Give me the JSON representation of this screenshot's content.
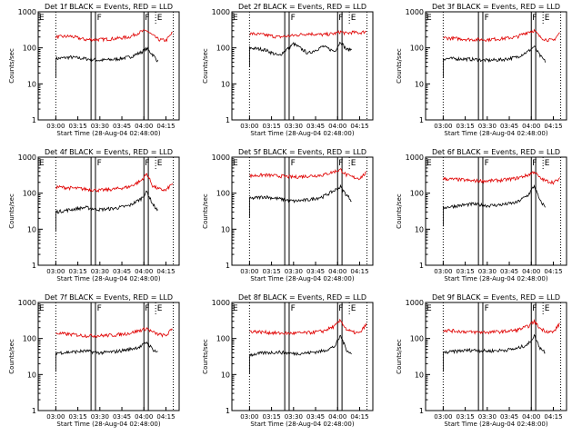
{
  "figure": {
    "xlabel": "Start Time (28-Aug-04 02:48:00)",
    "ylabel": "Counts/sec",
    "xtick_labels": [
      "03:00",
      "03:15",
      "03:30",
      "03:45",
      "04:00",
      "04:15"
    ],
    "ytick_labels": [
      "1",
      "10",
      "100",
      "1000"
    ],
    "interval_labels": [
      "E",
      "F",
      "F",
      "E"
    ],
    "colors": {
      "events": "#000000",
      "lld": "#e00000"
    }
  },
  "chart_data": [
    {
      "type": "line",
      "title": "Det 1f BLACK = Events, RED = LLD",
      "xlabel": "Start Time (28-Aug-04 02:48:00)",
      "ylabel": "Counts/sec",
      "y_scale": "log",
      "ylim": [
        1,
        1000
      ],
      "xlim": [
        "02:48",
        "04:24"
      ],
      "x": [
        "03:00",
        "03:10",
        "03:20",
        "03:30",
        "03:40",
        "03:50",
        "03:58",
        "04:02",
        "04:06",
        "04:10",
        "04:15",
        "04:20"
      ],
      "series": [
        {
          "name": "Events",
          "color": "#000000",
          "values": [
            50,
            55,
            50,
            45,
            48,
            55,
            75,
            95,
            65,
            40,
            null,
            null
          ]
        },
        {
          "name": "LLD",
          "color": "#e00000",
          "values": [
            200,
            210,
            170,
            170,
            180,
            200,
            280,
            300,
            220,
            170,
            160,
            280
          ]
        }
      ]
    },
    {
      "type": "line",
      "title": "Det 2f BLACK = Events, RED = LLD",
      "xlabel": "Start Time (28-Aug-04 02:48:00)",
      "ylabel": "Counts/sec",
      "y_scale": "log",
      "ylim": [
        1,
        1000
      ],
      "xlim": [
        "02:48",
        "04:24"
      ],
      "x": [
        "03:00",
        "03:10",
        "03:20",
        "03:30",
        "03:40",
        "03:50",
        "03:58",
        "04:02",
        "04:06",
        "04:10",
        "04:15",
        "04:20"
      ],
      "series": [
        {
          "name": "Events",
          "color": "#000000",
          "values": [
            100,
            90,
            60,
            130,
            70,
            110,
            80,
            150,
            90,
            90,
            null,
            null
          ]
        },
        {
          "name": "LLD",
          "color": "#e00000",
          "values": [
            250,
            230,
            200,
            220,
            250,
            230,
            250,
            280,
            250,
            270,
            260,
            290
          ]
        }
      ]
    },
    {
      "type": "line",
      "title": "Det 3f BLACK = Events, RED = LLD",
      "xlabel": "Start Time (28-Aug-04 02:48:00)",
      "ylabel": "Counts/sec",
      "y_scale": "log",
      "ylim": [
        1,
        1000
      ],
      "xlim": [
        "02:48",
        "04:24"
      ],
      "x": [
        "03:00",
        "03:10",
        "03:20",
        "03:30",
        "03:40",
        "03:50",
        "03:58",
        "04:02",
        "04:06",
        "04:10",
        "04:15",
        "04:20"
      ],
      "series": [
        {
          "name": "Events",
          "color": "#000000",
          "values": [
            50,
            50,
            48,
            45,
            47,
            55,
            80,
            110,
            60,
            40,
            null,
            null
          ]
        },
        {
          "name": "LLD",
          "color": "#e00000",
          "values": [
            190,
            180,
            170,
            170,
            180,
            200,
            280,
            300,
            200,
            170,
            160,
            280
          ]
        }
      ]
    },
    {
      "type": "line",
      "title": "Det 4f BLACK = Events, RED = LLD",
      "xlabel": "Start Time (28-Aug-04 02:48:00)",
      "ylabel": "Counts/sec",
      "y_scale": "log",
      "ylim": [
        1,
        1000
      ],
      "xlim": [
        "02:48",
        "04:24"
      ],
      "x": [
        "03:00",
        "03:10",
        "03:20",
        "03:30",
        "03:40",
        "03:50",
        "03:58",
        "04:02",
        "04:06",
        "04:10",
        "04:15",
        "04:20"
      ],
      "series": [
        {
          "name": "Events",
          "color": "#000000",
          "values": [
            30,
            35,
            40,
            35,
            38,
            45,
            70,
            110,
            50,
            30,
            null,
            null
          ]
        },
        {
          "name": "LLD",
          "color": "#e00000",
          "values": [
            150,
            140,
            130,
            120,
            130,
            150,
            220,
            350,
            160,
            130,
            120,
            200
          ]
        }
      ]
    },
    {
      "type": "line",
      "title": "Det 5f BLACK = Events, RED = LLD",
      "xlabel": "Start Time (28-Aug-04 02:48:00)",
      "ylabel": "Counts/sec",
      "y_scale": "log",
      "ylim": [
        1,
        1000
      ],
      "xlim": [
        "02:48",
        "04:24"
      ],
      "x": [
        "03:00",
        "03:10",
        "03:20",
        "03:30",
        "03:40",
        "03:50",
        "03:58",
        "04:02",
        "04:06",
        "04:10",
        "04:15",
        "04:20"
      ],
      "series": [
        {
          "name": "Events",
          "color": "#000000",
          "values": [
            70,
            80,
            70,
            60,
            65,
            80,
            120,
            150,
            90,
            60,
            null,
            null
          ]
        },
        {
          "name": "LLD",
          "color": "#e00000",
          "values": [
            300,
            320,
            300,
            280,
            300,
            320,
            400,
            450,
            320,
            280,
            260,
            380
          ]
        }
      ]
    },
    {
      "type": "line",
      "title": "Det 6f BLACK = Events, RED = LLD",
      "xlabel": "Start Time (28-Aug-04 02:48:00)",
      "ylabel": "Counts/sec",
      "y_scale": "log",
      "ylim": [
        1,
        1000
      ],
      "xlim": [
        "02:48",
        "04:24"
      ],
      "x": [
        "03:00",
        "03:10",
        "03:20",
        "03:30",
        "03:40",
        "03:50",
        "03:58",
        "04:02",
        "04:06",
        "04:10",
        "04:15",
        "04:20"
      ],
      "series": [
        {
          "name": "Events",
          "color": "#000000",
          "values": [
            40,
            45,
            50,
            45,
            48,
            55,
            90,
            160,
            60,
            40,
            null,
            null
          ]
        },
        {
          "name": "LLD",
          "color": "#e00000",
          "values": [
            250,
            240,
            220,
            220,
            230,
            260,
            320,
            400,
            260,
            220,
            200,
            250
          ]
        }
      ]
    },
    {
      "type": "line",
      "title": "Det 7f BLACK = Events, RED = LLD",
      "xlabel": "Start Time (28-Aug-04 02:48:00)",
      "ylabel": "Counts/sec",
      "y_scale": "log",
      "ylim": [
        1,
        1000
      ],
      "xlim": [
        "02:48",
        "04:24"
      ],
      "x": [
        "03:00",
        "03:10",
        "03:20",
        "03:30",
        "03:40",
        "03:50",
        "03:58",
        "04:02",
        "04:06",
        "04:10",
        "04:15",
        "04:20"
      ],
      "series": [
        {
          "name": "Events",
          "color": "#000000",
          "values": [
            40,
            42,
            45,
            40,
            43,
            50,
            60,
            80,
            50,
            40,
            null,
            null
          ]
        },
        {
          "name": "LLD",
          "color": "#e00000",
          "values": [
            140,
            130,
            120,
            120,
            125,
            140,
            170,
            190,
            150,
            130,
            120,
            200
          ]
        }
      ]
    },
    {
      "type": "line",
      "title": "Det 8f BLACK = Events, RED = LLD",
      "xlabel": "Start Time (28-Aug-04 02:48:00)",
      "ylabel": "Counts/sec",
      "y_scale": "log",
      "ylim": [
        1,
        1000
      ],
      "xlim": [
        "02:48",
        "04:24"
      ],
      "x": [
        "03:00",
        "03:10",
        "03:20",
        "03:30",
        "03:40",
        "03:50",
        "03:58",
        "04:02",
        "04:06",
        "04:10",
        "04:15",
        "04:20"
      ],
      "series": [
        {
          "name": "Events",
          "color": "#000000",
          "values": [
            35,
            40,
            42,
            38,
            40,
            45,
            60,
            120,
            50,
            35,
            null,
            null
          ]
        },
        {
          "name": "LLD",
          "color": "#e00000",
          "values": [
            160,
            150,
            140,
            140,
            145,
            160,
            220,
            320,
            180,
            150,
            140,
            260
          ]
        }
      ]
    },
    {
      "type": "line",
      "title": "Det 9f BLACK = Events, RED = LLD",
      "xlabel": "Start Time (28-Aug-04 02:48:00)",
      "ylabel": "Counts/sec",
      "y_scale": "log",
      "ylim": [
        1,
        1000
      ],
      "xlim": [
        "02:48",
        "04:24"
      ],
      "x": [
        "03:00",
        "03:10",
        "03:20",
        "03:30",
        "03:40",
        "03:50",
        "03:58",
        "04:02",
        "04:06",
        "04:10",
        "04:15",
        "04:20"
      ],
      "series": [
        {
          "name": "Events",
          "color": "#000000",
          "values": [
            40,
            45,
            48,
            45,
            47,
            52,
            70,
            120,
            55,
            40,
            null,
            null
          ]
        },
        {
          "name": "LLD",
          "color": "#e00000",
          "values": [
            170,
            160,
            150,
            150,
            155,
            170,
            220,
            300,
            190,
            160,
            150,
            280
          ]
        }
      ]
    }
  ]
}
